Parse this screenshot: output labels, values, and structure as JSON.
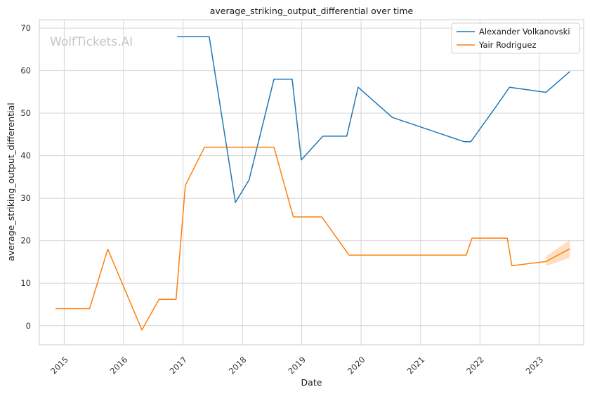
{
  "watermark": "WolfTickets.AI",
  "chart_data": {
    "type": "line",
    "title": "average_striking_output_differential over time",
    "xlabel": "Date",
    "ylabel": "average_striking_output_differential",
    "x_axis_type": "date",
    "xlim": [
      "2014-08-01",
      "2023-10-01"
    ],
    "ylim": [
      -4.5,
      72
    ],
    "x_ticks": [
      {
        "date": "2015-01-01",
        "label": "2015"
      },
      {
        "date": "2016-01-01",
        "label": "2016"
      },
      {
        "date": "2017-01-01",
        "label": "2017"
      },
      {
        "date": "2018-01-01",
        "label": "2018"
      },
      {
        "date": "2019-01-01",
        "label": "2019"
      },
      {
        "date": "2020-01-01",
        "label": "2020"
      },
      {
        "date": "2021-01-01",
        "label": "2021"
      },
      {
        "date": "2022-01-01",
        "label": "2022"
      },
      {
        "date": "2023-01-01",
        "label": "2023"
      }
    ],
    "y_ticks": [
      0,
      10,
      20,
      30,
      40,
      50,
      60,
      70
    ],
    "grid": true,
    "legend_position": "top-right",
    "series": [
      {
        "name": "Alexander Volkanovski",
        "color": "#1f77b4",
        "points": [
          {
            "x": "2016-11-26",
            "y": 68
          },
          {
            "x": "2017-06-11",
            "y": 68
          },
          {
            "x": "2017-11-19",
            "y": 29
          },
          {
            "x": "2018-02-11",
            "y": 34.3
          },
          {
            "x": "2018-07-14",
            "y": 58
          },
          {
            "x": "2018-11-03",
            "y": 58
          },
          {
            "x": "2018-12-29",
            "y": 39
          },
          {
            "x": "2019-05-11",
            "y": 44.6
          },
          {
            "x": "2019-10-05",
            "y": 44.6
          },
          {
            "x": "2019-12-14",
            "y": 56.1
          },
          {
            "x": "2020-07-11",
            "y": 49
          },
          {
            "x": "2021-09-25",
            "y": 43.3
          },
          {
            "x": "2021-11-06",
            "y": 43.3
          },
          {
            "x": "2022-04-09",
            "y": 51.5
          },
          {
            "x": "2022-07-02",
            "y": 56.1
          },
          {
            "x": "2023-02-11",
            "y": 54.9
          },
          {
            "x": "2023-07-08",
            "y": 59.8
          }
        ]
      },
      {
        "name": "Yair Rodriguez",
        "color": "#ff7f0e",
        "points": [
          {
            "x": "2014-11-08",
            "y": 4
          },
          {
            "x": "2015-06-06",
            "y": 4
          },
          {
            "x": "2015-09-26",
            "y": 18
          },
          {
            "x": "2016-04-23",
            "y": -1
          },
          {
            "x": "2016-08-06",
            "y": 6.2
          },
          {
            "x": "2016-11-19",
            "y": 6.2
          },
          {
            "x": "2017-01-15",
            "y": 33
          },
          {
            "x": "2017-05-13",
            "y": 42
          },
          {
            "x": "2018-07-14",
            "y": 42
          },
          {
            "x": "2018-11-10",
            "y": 25.6
          },
          {
            "x": "2019-05-04",
            "y": 25.6
          },
          {
            "x": "2019-09-21",
            "y": 18.1
          },
          {
            "x": "2019-10-19",
            "y": 16.6
          },
          {
            "x": "2021-10-09",
            "y": 16.6
          },
          {
            "x": "2021-11-13",
            "y": 20.6
          },
          {
            "x": "2022-06-18",
            "y": 20.6
          },
          {
            "x": "2022-07-16",
            "y": 14.1
          },
          {
            "x": "2023-02-11",
            "y": 15.1
          },
          {
            "x": "2023-07-08",
            "y": 18.1
          }
        ],
        "confidence_band": [
          {
            "x": "2023-02-11",
            "low": 14,
            "high": 16.3
          },
          {
            "x": "2023-07-08",
            "low": 16,
            "high": 20.2
          }
        ]
      }
    ]
  }
}
